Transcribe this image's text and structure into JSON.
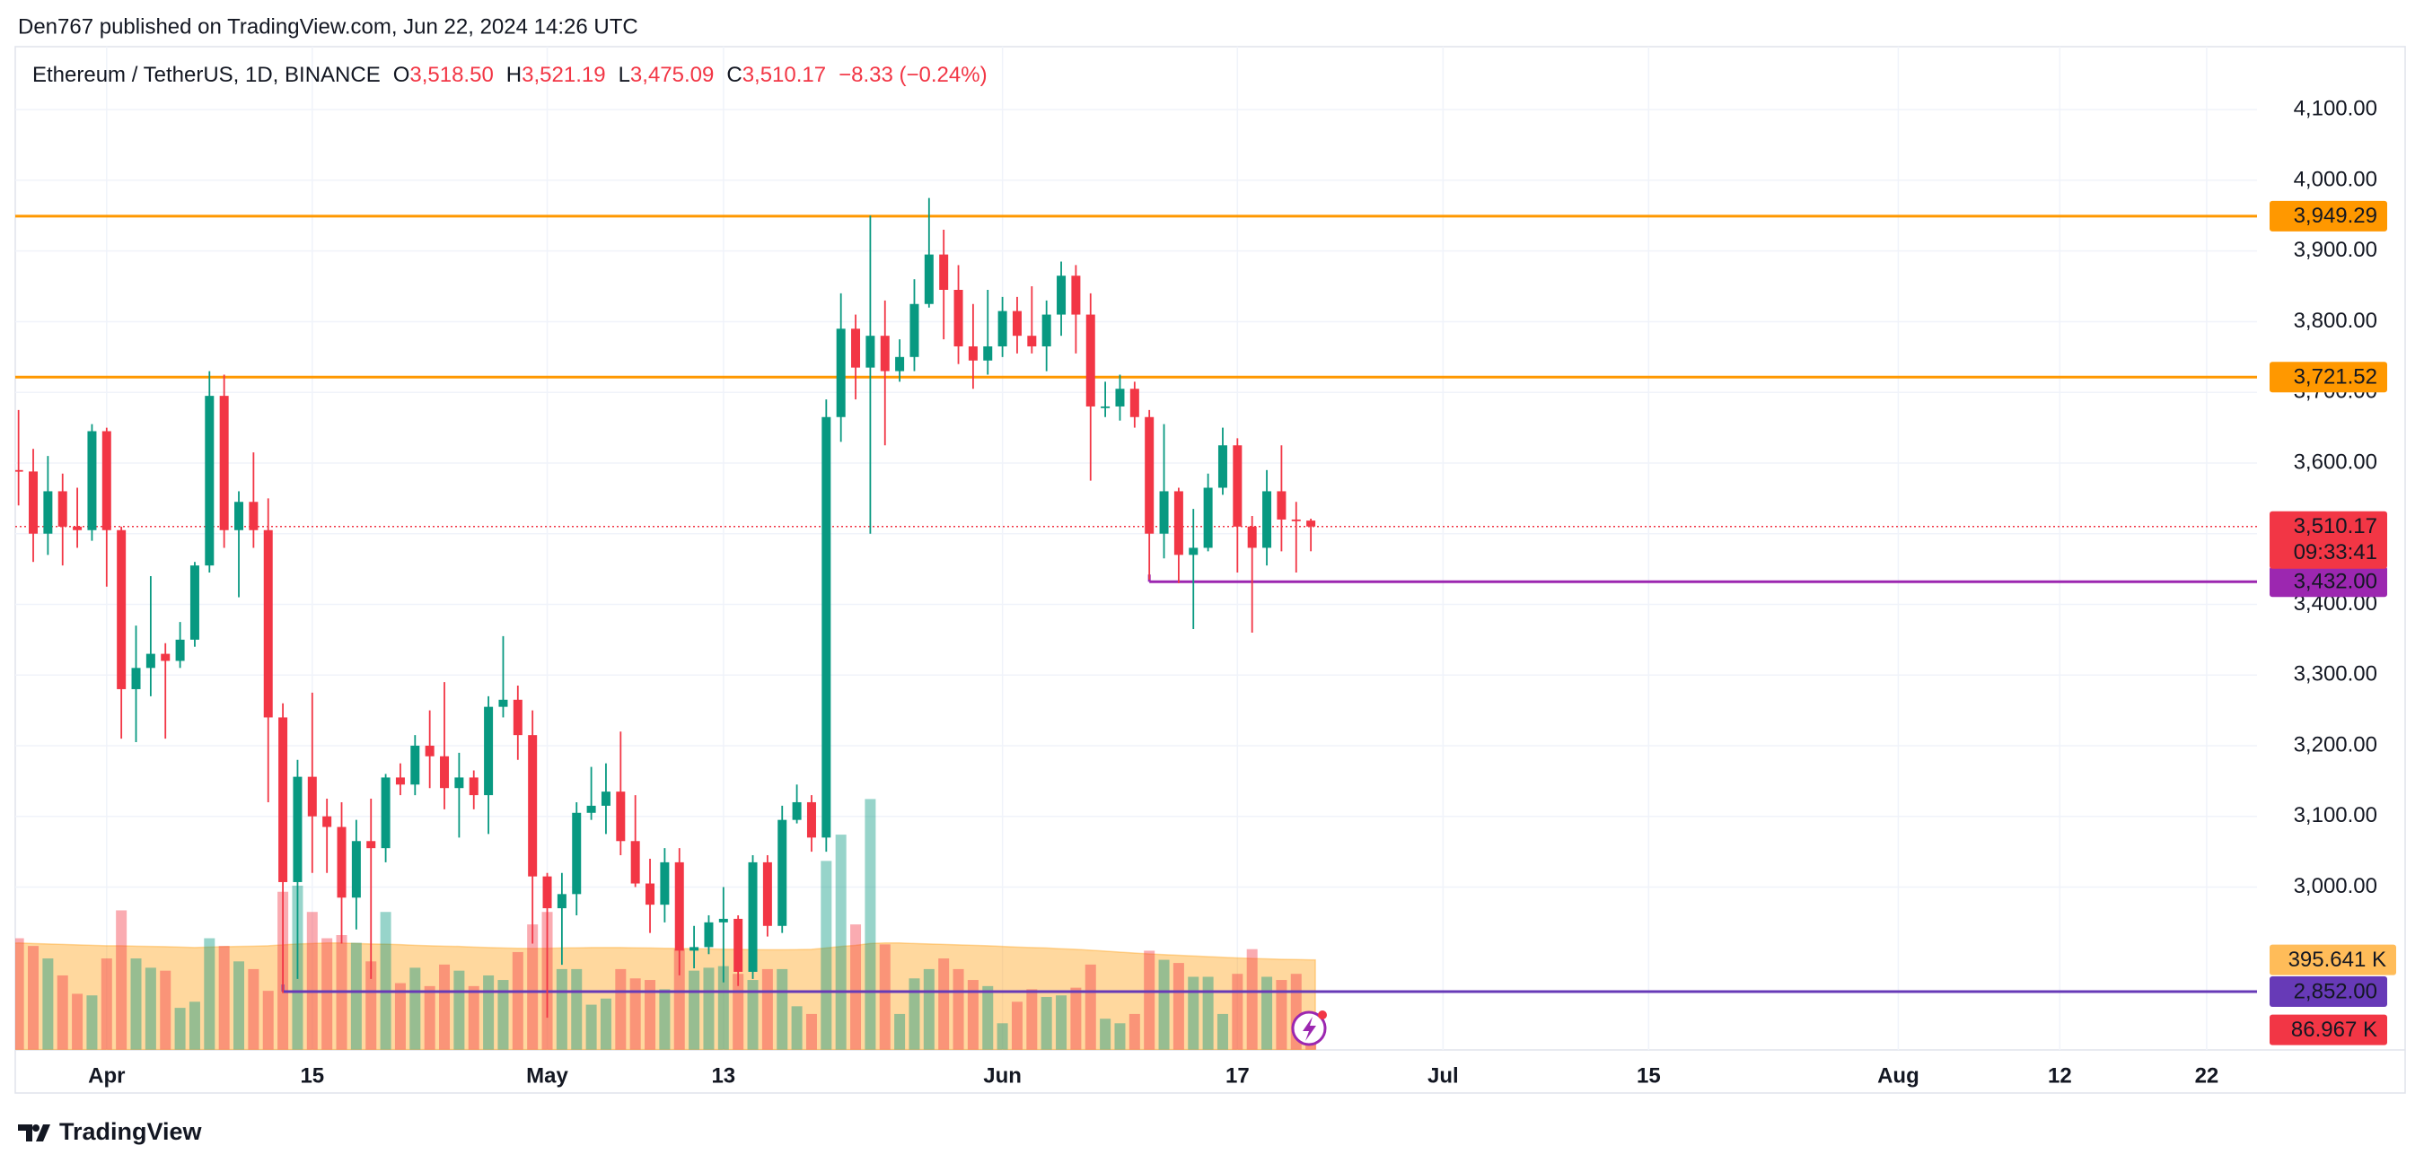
{
  "chart_data": {
    "type": "candlestick",
    "header": "Den767 published on TradingView.com, Jun 22, 2024 14:26 UTC",
    "brand": "TradingView",
    "legend": {
      "symbol": "Ethereum / TetherUS, 1D, BINANCE",
      "open_key": "O",
      "open": "3,518.50",
      "high_key": "H",
      "high": "3,521.19",
      "low_key": "L",
      "low": "3,475.09",
      "close_key": "C",
      "close": "3,510.17",
      "change": "−8.33 (−0.24%)",
      "countdown": "09:33:41"
    },
    "up_color": "#089981",
    "down_color": "#f23645",
    "x": [
      "2024-03-26",
      "2024-03-27",
      "2024-03-28",
      "2024-03-29",
      "2024-03-30",
      "2024-03-31",
      "2024-04-01",
      "2024-04-02",
      "2024-04-03",
      "2024-04-04",
      "2024-04-05",
      "2024-04-06",
      "2024-04-07",
      "2024-04-08",
      "2024-04-09",
      "2024-04-10",
      "2024-04-11",
      "2024-04-12",
      "2024-04-13",
      "2024-04-14",
      "2024-04-15",
      "2024-04-16",
      "2024-04-17",
      "2024-04-18",
      "2024-04-19",
      "2024-04-20",
      "2024-04-21",
      "2024-04-22",
      "2024-04-23",
      "2024-04-24",
      "2024-04-25",
      "2024-04-26",
      "2024-04-27",
      "2024-04-28",
      "2024-04-29",
      "2024-04-30",
      "2024-05-01",
      "2024-05-02",
      "2024-05-03",
      "2024-05-04",
      "2024-05-05",
      "2024-05-06",
      "2024-05-07",
      "2024-05-08",
      "2024-05-09",
      "2024-05-10",
      "2024-05-11",
      "2024-05-12",
      "2024-05-13",
      "2024-05-14",
      "2024-05-15",
      "2024-05-16",
      "2024-05-17",
      "2024-05-18",
      "2024-05-19",
      "2024-05-20",
      "2024-05-21",
      "2024-05-22",
      "2024-05-23",
      "2024-05-24",
      "2024-05-25",
      "2024-05-26",
      "2024-05-27",
      "2024-05-28",
      "2024-05-29",
      "2024-05-30",
      "2024-05-31",
      "2024-06-01",
      "2024-06-02",
      "2024-06-03",
      "2024-06-04",
      "2024-06-05",
      "2024-06-06",
      "2024-06-07",
      "2024-06-08",
      "2024-06-09",
      "2024-06-10",
      "2024-06-11",
      "2024-06-12",
      "2024-06-13",
      "2024-06-14",
      "2024-06-15",
      "2024-06-16",
      "2024-06-17",
      "2024-06-18",
      "2024-06-19",
      "2024-06-20",
      "2024-06-21",
      "2024-06-22"
    ],
    "open": [
      3590,
      3588,
      3500,
      3560,
      3510,
      3505,
      3645,
      3505,
      3280,
      3310,
      3330,
      3320,
      3350,
      3455,
      3695,
      3505,
      3545,
      3505,
      3240,
      3007,
      3156,
      3100,
      3085,
      2985,
      3065,
      3055,
      3155,
      3145,
      3200,
      3185,
      3140,
      3155,
      3130,
      3255,
      3265,
      3215,
      3015,
      2970,
      2990,
      3105,
      3115,
      3135,
      3065,
      3005,
      2975,
      3035,
      2910,
      2915,
      2950,
      2955,
      2880,
      3035,
      2945,
      3095,
      3120,
      3070,
      3665,
      3790,
      3735,
      3780,
      3730,
      3750,
      3825,
      3895,
      3845,
      3765,
      3745,
      3765,
      3815,
      3780,
      3765,
      3810,
      3865,
      3810,
      3680,
      3680,
      3705,
      3665,
      3500,
      3560,
      3470,
      3480,
      3565,
      3625,
      3510,
      3480,
      3560,
      3520,
      3518.5
    ],
    "high": [
      3675,
      3620,
      3610,
      3585,
      3565,
      3655,
      3650,
      3510,
      3370,
      3440,
      3345,
      3375,
      3460,
      3730,
      3725,
      3560,
      3615,
      3550,
      3260,
      3180,
      3275,
      3125,
      3120,
      3095,
      3125,
      3160,
      3175,
      3215,
      3250,
      3290,
      3190,
      3165,
      3270,
      3355,
      3285,
      3250,
      3020,
      3020,
      3120,
      3170,
      3175,
      3220,
      3130,
      3040,
      3055,
      3055,
      2945,
      2960,
      3000,
      2960,
      3045,
      3045,
      3115,
      3145,
      3130,
      3690,
      3840,
      3810,
      3950,
      3830,
      3775,
      3860,
      3975,
      3930,
      3880,
      3825,
      3845,
      3835,
      3835,
      3850,
      3830,
      3885,
      3880,
      3840,
      3715,
      3725,
      3715,
      3675,
      3655,
      3565,
      3535,
      3585,
      3650,
      3635,
      3525,
      3590,
      3625,
      3545,
      3521.19
    ],
    "low": [
      3540,
      3460,
      3470,
      3455,
      3480,
      3490,
      3425,
      3210,
      3205,
      3270,
      3210,
      3310,
      3340,
      3445,
      3480,
      3410,
      3480,
      3120,
      2850,
      2870,
      3020,
      3020,
      2920,
      2940,
      2870,
      3035,
      3130,
      3130,
      3140,
      3110,
      3070,
      3110,
      3075,
      3240,
      3180,
      2920,
      2815,
      2890,
      2960,
      3095,
      3075,
      3045,
      3000,
      2935,
      2950,
      2875,
      2885,
      2905,
      2865,
      2860,
      2870,
      2930,
      2935,
      3090,
      3050,
      3050,
      3630,
      3690,
      3500,
      3625,
      3715,
      3730,
      3820,
      3775,
      3740,
      3705,
      3725,
      3750,
      3755,
      3755,
      3730,
      3780,
      3755,
      3575,
      3665,
      3660,
      3650,
      3435,
      3465,
      3430,
      3365,
      3475,
      3555,
      3445,
      3360,
      3455,
      3475,
      3445,
      3475.09
    ],
    "close": [
      3588,
      3500,
      3560,
      3510,
      3505,
      3645,
      3505,
      3280,
      3310,
      3330,
      3320,
      3350,
      3455,
      3695,
      3505,
      3545,
      3505,
      3240,
      3007,
      3156,
      3100,
      3085,
      2985,
      3065,
      3055,
      3155,
      3145,
      3200,
      3185,
      3140,
      3155,
      3130,
      3255,
      3265,
      3215,
      3015,
      2970,
      2990,
      3105,
      3115,
      3135,
      3065,
      3005,
      2975,
      3035,
      2910,
      2915,
      2950,
      2955,
      2880,
      3035,
      2945,
      3095,
      3120,
      3070,
      3665,
      3790,
      3735,
      3780,
      3730,
      3750,
      3825,
      3895,
      3845,
      3765,
      3745,
      3765,
      3815,
      3780,
      3765,
      3810,
      3865,
      3810,
      3680,
      3680,
      3705,
      3665,
      3500,
      3560,
      3470,
      3480,
      3565,
      3625,
      3510,
      3480,
      3560,
      3520,
      3518.5,
      3510.17
    ],
    "volume": {
      "values": [
        491,
        457,
        402,
        327,
        246,
        239,
        402,
        614,
        402,
        361,
        348,
        184,
        211,
        491,
        457,
        389,
        355,
        259,
        696,
        723,
        607,
        491,
        505,
        471,
        389,
        607,
        293,
        361,
        280,
        375,
        348,
        280,
        327,
        307,
        430,
        552,
        607,
        355,
        355,
        198,
        225,
        355,
        314,
        307,
        266,
        443,
        348,
        361,
        368,
        334,
        307,
        355,
        355,
        191,
        157,
        832,
        948,
        552,
        1105,
        464,
        157,
        314,
        355,
        402,
        355,
        307,
        280,
        116,
        211,
        266,
        232,
        239,
        273,
        375,
        136,
        116,
        157,
        436,
        396,
        382,
        321,
        321,
        157,
        334,
        443,
        321,
        307,
        334,
        86.967
      ],
      "value_label": "86.967 K",
      "ma": [
        470,
        468,
        466,
        464,
        462,
        460,
        458,
        458,
        456,
        455,
        454,
        452,
        450,
        452,
        454,
        455,
        456,
        458,
        462,
        466,
        468,
        470,
        470,
        468,
        466,
        465,
        463,
        460,
        458,
        456,
        455,
        452,
        450,
        448,
        447,
        446,
        447,
        448,
        449,
        450,
        450,
        450,
        449,
        448,
        447,
        446,
        445,
        444,
        443,
        442,
        441,
        440,
        440,
        441,
        442,
        448,
        455,
        460,
        468,
        470,
        470,
        468,
        466,
        464,
        462,
        460,
        458,
        455,
        452,
        450,
        448,
        445,
        442,
        438,
        434,
        430,
        426,
        422,
        419,
        416,
        413,
        410,
        407,
        404,
        402,
        400,
        398,
        397,
        395.641
      ],
      "ma_label": "395.641 K",
      "ma_color": "#ff9800",
      "ylim": [
        0,
        4426
      ]
    },
    "horizontal_lines": [
      {
        "value": 3949.29,
        "label": "3,949.29",
        "color": "#ff9800"
      },
      {
        "value": 3721.52,
        "label": "3,721.52",
        "color": "#ff9800"
      },
      {
        "value": 3432,
        "label": "3,432.00",
        "color": "#9c27b0",
        "start": "2024-06-11"
      },
      {
        "value": 2852,
        "label": "2,852.00",
        "color": "#673ab7",
        "start": "2024-04-13"
      }
    ],
    "xlim": [
      "2024-03-25",
      "2024-08-25"
    ],
    "xticks": [
      {
        "value": "2024-04-01",
        "label": "Apr"
      },
      {
        "value": "2024-04-15",
        "label": "15"
      },
      {
        "value": "2024-05-01",
        "label": "May"
      },
      {
        "value": "2024-05-13",
        "label": "13"
      },
      {
        "value": "2024-06-01",
        "label": "Jun"
      },
      {
        "value": "2024-06-17",
        "label": "17"
      },
      {
        "value": "2024-07-01",
        "label": "Jul"
      },
      {
        "value": "2024-07-15",
        "label": "15"
      },
      {
        "value": "2024-08-01",
        "label": "Aug"
      },
      {
        "value": "2024-08-12",
        "label": "12"
      },
      {
        "value": "2024-08-22",
        "label": "22"
      }
    ],
    "ylim": [
      2770,
      4190
    ],
    "yticks": [
      {
        "value": 3000,
        "label": "3,000.00"
      },
      {
        "value": 3100,
        "label": "3,100.00"
      },
      {
        "value": 3200,
        "label": "3,200.00"
      },
      {
        "value": 3300,
        "label": "3,300.00"
      },
      {
        "value": 3400,
        "label": "3,400.00"
      },
      {
        "value": 3500,
        "label": "3,500.00"
      },
      {
        "value": 3600,
        "label": "3,600.00"
      },
      {
        "value": 3700,
        "label": "3,700.00"
      },
      {
        "value": 3800,
        "label": "3,800.00"
      },
      {
        "value": 3900,
        "label": "3,900.00"
      },
      {
        "value": 4000,
        "label": "4,000.00"
      },
      {
        "value": 4100,
        "label": "4,100.00"
      }
    ],
    "grid": true
  }
}
